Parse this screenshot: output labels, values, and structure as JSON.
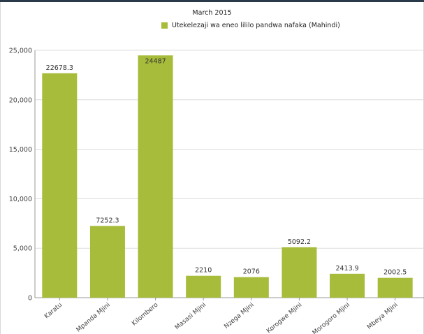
{
  "chart_data": {
    "type": "bar",
    "title": "March 2015",
    "categories": [
      "Karatu",
      "Mpanda Mjini",
      "Kilombero",
      "Masasi Mjini",
      "Nzega Mjini",
      "Korogwe Mjini",
      "Morogoro Mjini",
      "Mbeya Mjini"
    ],
    "series": [
      {
        "name": "Utekelezaji wa eneo lililo pandwa nafaka (Mahindi)",
        "values": [
          22678.3,
          7252.3,
          24487,
          2210,
          2076,
          5092.2,
          2413.9,
          2002.5
        ],
        "labels": [
          "22678.3",
          "7252.3",
          "24487",
          "2210",
          "2076",
          "5092.2",
          "2413.9",
          "2002.5"
        ],
        "color": "#a6bc3a"
      }
    ],
    "ylim": [
      0,
      25000
    ],
    "yticks": [
      0,
      5000,
      10000,
      15000,
      20000,
      25000
    ],
    "ytick_labels": [
      "0",
      "5,000",
      "10,000",
      "15,000",
      "20,000",
      "25,000"
    ],
    "grid": true,
    "legend": "top-center"
  }
}
